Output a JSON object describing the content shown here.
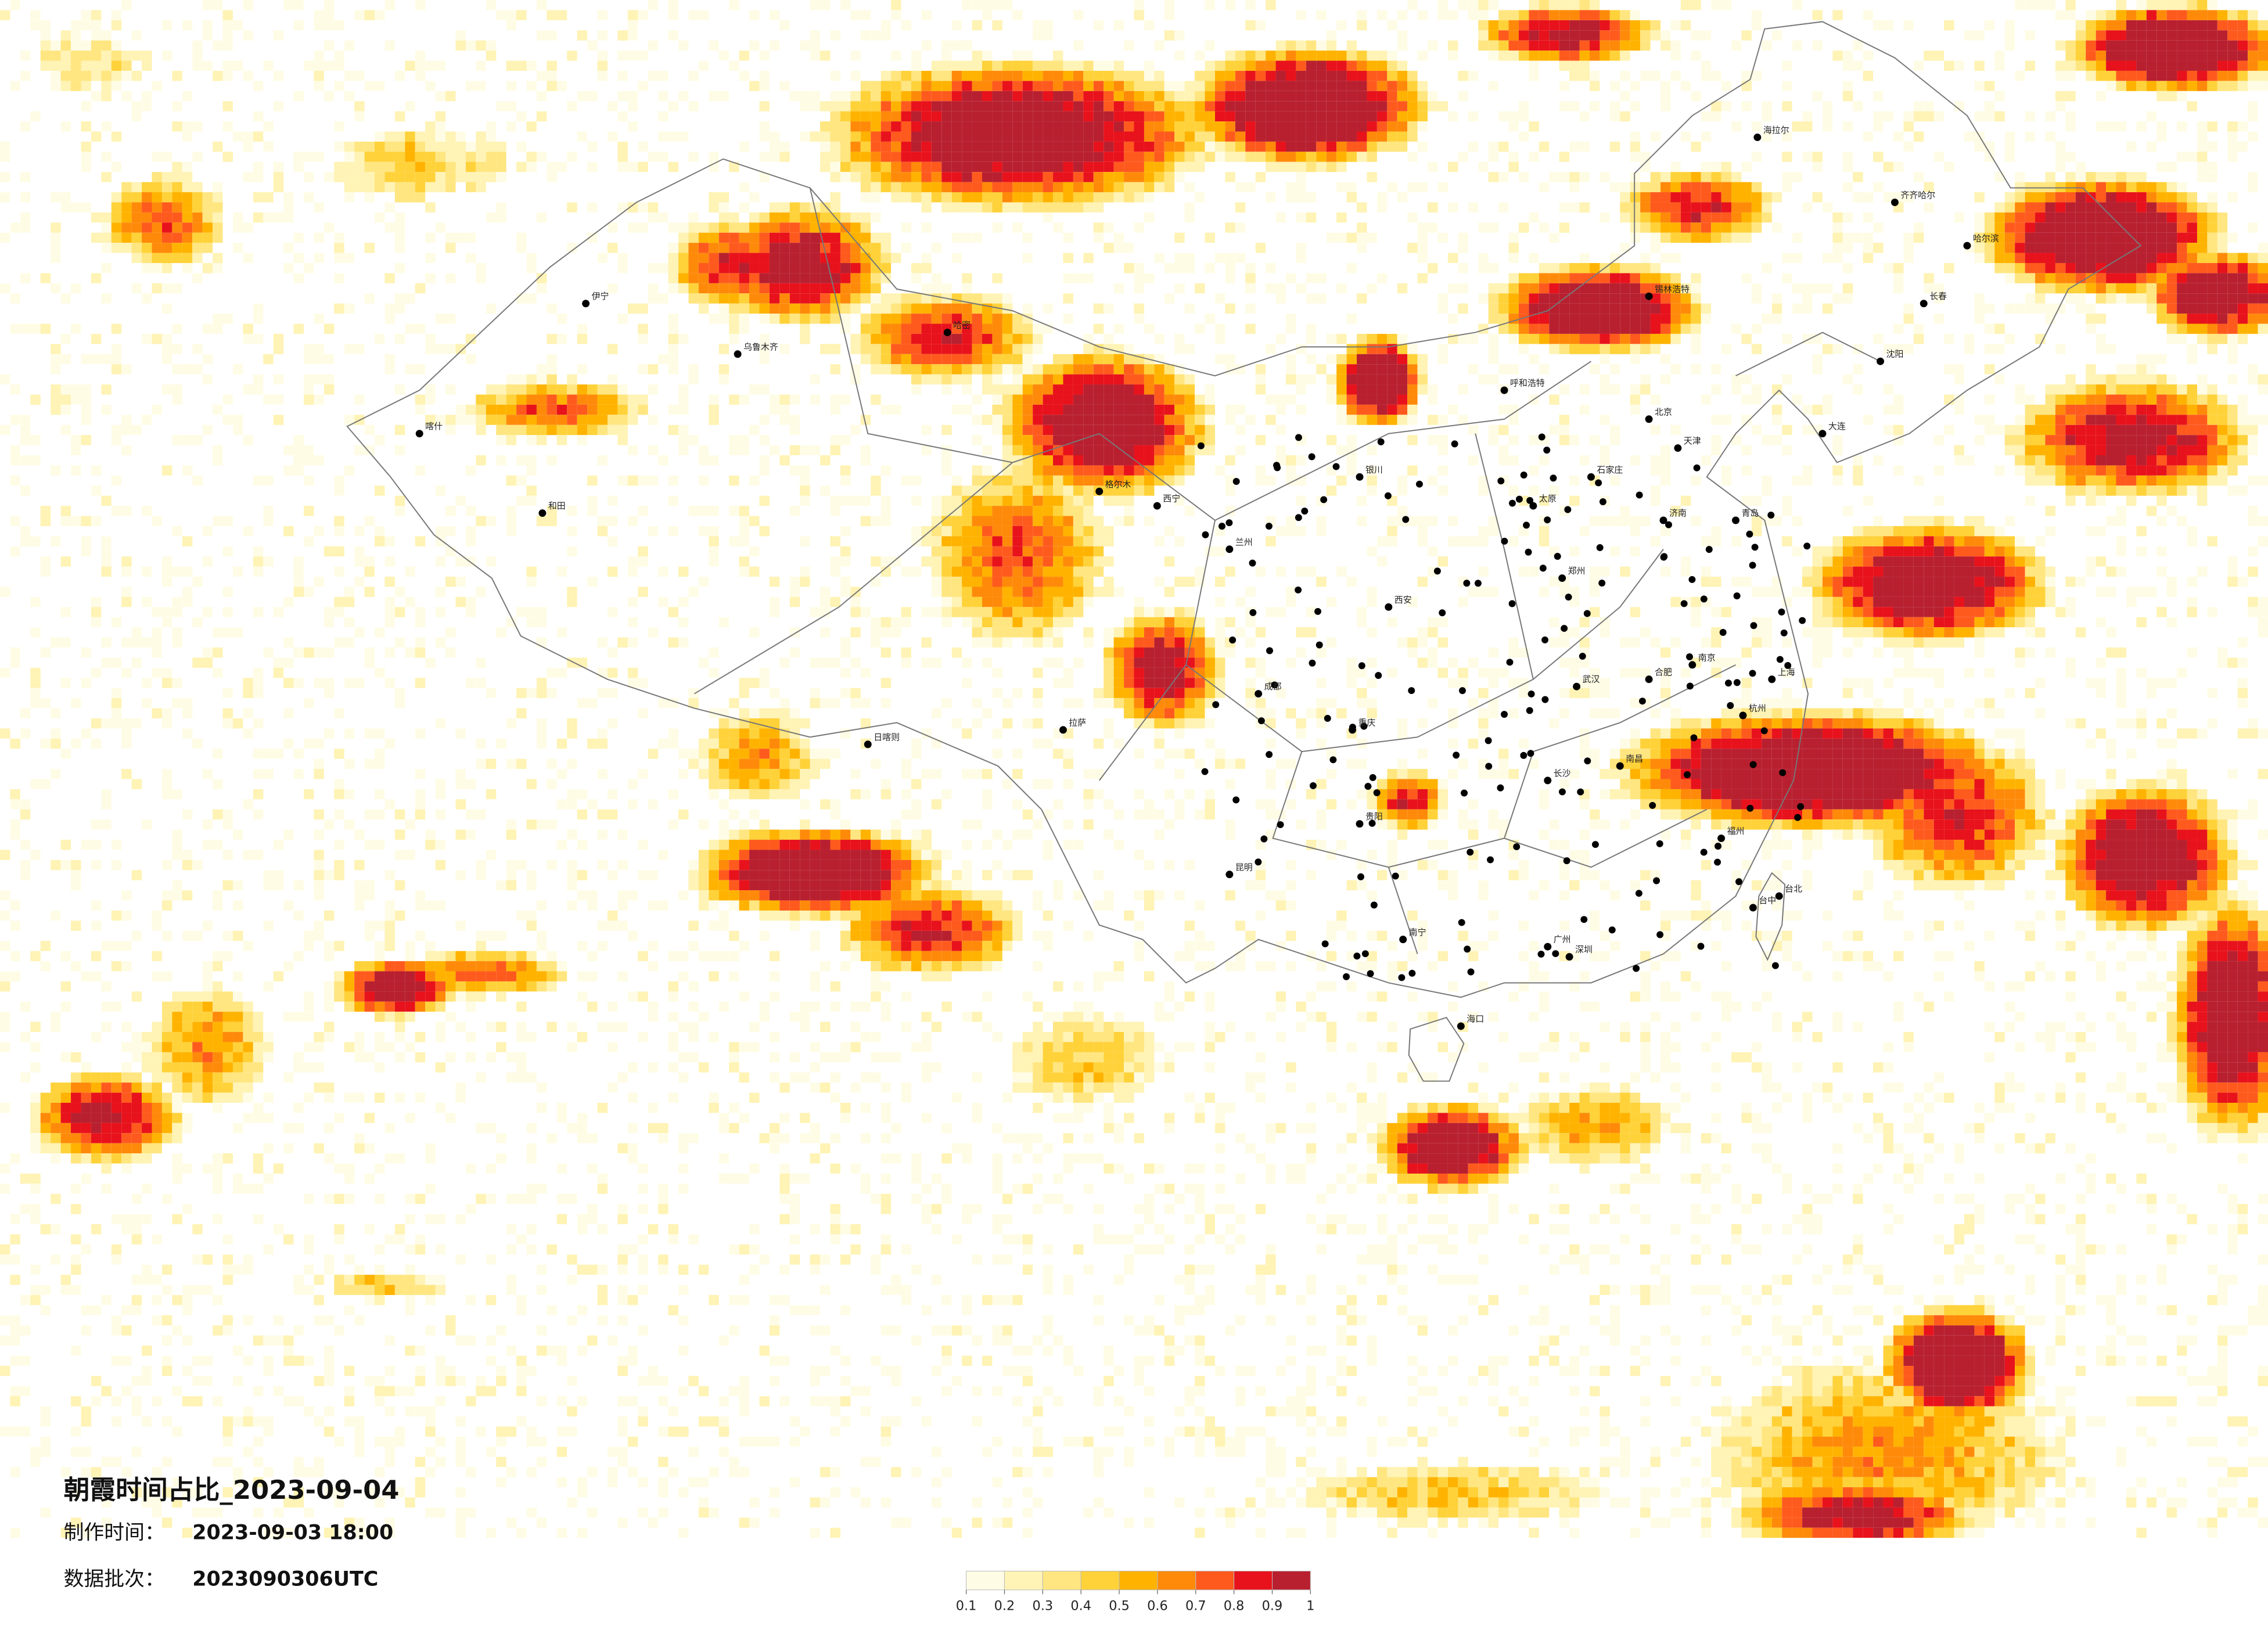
{
  "title": "朝霞时间占比_2023-09-04",
  "made_time": {
    "label": "制作时间：",
    "value": "2023-09-03 18:00"
  },
  "batch": {
    "label": "数据批次：",
    "value": "2023090306UTC"
  },
  "legend": {
    "colors": [
      "#fffce6",
      "#fff3b5",
      "#ffe680",
      "#ffd23a",
      "#ffb300",
      "#ff8a0a",
      "#ff5a1e",
      "#e8121c",
      "#b82030"
    ],
    "ticks": [
      0.1,
      0.2,
      0.3,
      0.4,
      0.5,
      0.6,
      0.7,
      0.8,
      0.9,
      1
    ]
  },
  "cities": [
    "北京",
    "天津",
    "上海",
    "广州",
    "深圳",
    "重庆",
    "成都",
    "武汉",
    "西安",
    "兰州",
    "乌鲁木齐",
    "拉萨",
    "昆明",
    "贵阳",
    "南宁",
    "海口",
    "长沙",
    "南昌",
    "福州",
    "杭州",
    "南京",
    "合肥",
    "郑州",
    "济南",
    "石家庄",
    "太原",
    "呼和浩特",
    "银川",
    "西宁",
    "哈尔滨",
    "长春",
    "沈阳",
    "大连",
    "青岛",
    "台北",
    "齐齐哈尔",
    "喀什",
    "和田",
    "伊宁",
    "哈密",
    "格尔木",
    "日喀则",
    "锡林浩特",
    "海拉尔",
    "台中"
  ]
}
